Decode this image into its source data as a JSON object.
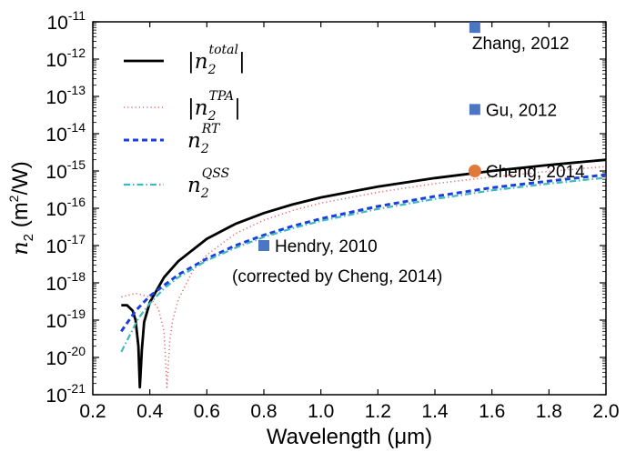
{
  "chart_data": {
    "type": "line",
    "xlabel": "Wavelength (μm)",
    "ylabel_symbol": "n",
    "ylabel_sub": "2",
    "ylabel_units": " (m",
    "ylabel_units_sup": "2",
    "ylabel_units_end": "/W)",
    "xlim": [
      0.2,
      2.0
    ],
    "ylim_log10": [
      -21,
      -11
    ],
    "y_scale": "log",
    "grid": false,
    "legend_position": "top-left",
    "x_ticks": [
      "0.2",
      "0.4",
      "0.6",
      "0.8",
      "1.0",
      "1.2",
      "1.4",
      "1.6",
      "1.8",
      "2.0"
    ],
    "y_ticks": [
      {
        "base": "10",
        "exp": "-21"
      },
      {
        "base": "10",
        "exp": "-20"
      },
      {
        "base": "10",
        "exp": "-19"
      },
      {
        "base": "10",
        "exp": "-18"
      },
      {
        "base": "10",
        "exp": "-17"
      },
      {
        "base": "10",
        "exp": "-16"
      },
      {
        "base": "10",
        "exp": "-15"
      },
      {
        "base": "10",
        "exp": "-14"
      },
      {
        "base": "10",
        "exp": "-13"
      },
      {
        "base": "10",
        "exp": "-12"
      },
      {
        "base": "10",
        "exp": "-11"
      }
    ],
    "series": [
      {
        "name": "|n2^total|",
        "legend": {
          "pre": "|",
          "sym": "n",
          "sub": "2",
          "sup": "total",
          "post": "|"
        },
        "color": "#000000",
        "dash": "",
        "width": 2.8,
        "x": [
          0.3,
          0.32,
          0.34,
          0.35,
          0.36,
          0.365,
          0.372,
          0.38,
          0.4,
          0.45,
          0.5,
          0.6,
          0.7,
          0.8,
          0.9,
          1.0,
          1.2,
          1.4,
          1.6,
          1.8,
          2.0
        ],
        "log10_y": [
          -18.6,
          -18.6,
          -18.75,
          -19.0,
          -19.7,
          -20.8,
          -19.8,
          -19.05,
          -18.52,
          -17.85,
          -17.42,
          -16.82,
          -16.42,
          -16.13,
          -15.9,
          -15.71,
          -15.42,
          -15.19,
          -15.0,
          -14.84,
          -14.7
        ]
      },
      {
        "name": "|n2^TPA|",
        "legend": {
          "pre": "|",
          "sym": "n",
          "sub": "2",
          "sup": "TPA",
          "post": "|"
        },
        "color": "#e07070",
        "dash": "1.2,3",
        "width": 1.6,
        "x": [
          0.3,
          0.35,
          0.4,
          0.43,
          0.45,
          0.46,
          0.47,
          0.48,
          0.5,
          0.55,
          0.6,
          0.7,
          0.8,
          0.9,
          1.0,
          1.2,
          1.4,
          1.6,
          1.8,
          2.0
        ],
        "log10_y": [
          -18.38,
          -18.28,
          -18.38,
          -18.7,
          -19.3,
          -20.8,
          -19.55,
          -19.0,
          -18.45,
          -17.68,
          -17.25,
          -16.68,
          -16.32,
          -16.06,
          -15.86,
          -15.57,
          -15.34,
          -15.16,
          -15.01,
          -14.88
        ]
      },
      {
        "name": "n2^RT",
        "legend": {
          "pre": "",
          "sym": "n",
          "sub": "2",
          "sup": "RT",
          "post": ""
        },
        "color": "#1a3fdc",
        "dash": "6,4",
        "width": 3.0,
        "x": [
          0.3,
          0.35,
          0.4,
          0.5,
          0.6,
          0.7,
          0.8,
          0.9,
          1.0,
          1.2,
          1.4,
          1.6,
          1.8,
          2.0
        ],
        "log10_y": [
          -19.3,
          -18.75,
          -18.35,
          -17.78,
          -17.35,
          -17.0,
          -16.72,
          -16.48,
          -16.28,
          -15.95,
          -15.68,
          -15.45,
          -15.27,
          -15.1
        ]
      },
      {
        "name": "n2^QSS",
        "legend": {
          "pre": "",
          "sym": "n",
          "sub": "2",
          "sup": "QSS",
          "post": ""
        },
        "color": "#40b8c0",
        "dash": "7,3,1.5,3",
        "width": 2.2,
        "x": [
          0.3,
          0.33,
          0.36,
          0.4,
          0.45,
          0.5,
          0.6,
          0.7,
          0.8,
          0.9,
          1.0,
          1.2,
          1.4,
          1.6,
          1.8,
          2.0
        ],
        "log10_y": [
          -19.85,
          -19.4,
          -18.95,
          -18.55,
          -18.15,
          -17.85,
          -17.4,
          -17.06,
          -16.77,
          -16.54,
          -16.34,
          -16.02,
          -15.75,
          -15.52,
          -15.34,
          -15.18
        ]
      }
    ],
    "points": [
      {
        "label": "Zhang, 2012",
        "label2": "",
        "x": 1.54,
        "log10_y": -11.15,
        "marker": "square",
        "color": "#4a76c4",
        "label_side": "right-below"
      },
      {
        "label": "Gu, 2012",
        "label2": "",
        "x": 1.54,
        "log10_y": -13.35,
        "marker": "square",
        "color": "#4a76c4",
        "label_side": "right"
      },
      {
        "label": "Cheng, 2014",
        "label2": "",
        "x": 1.54,
        "log10_y": -15.0,
        "marker": "circle",
        "color": "#e07a3a",
        "label_side": "right"
      },
      {
        "label": "Hendry, 2010",
        "label2": "(corrected by Cheng, 2014)",
        "x": 0.8,
        "log10_y": -17.0,
        "marker": "square",
        "color": "#4a76c4",
        "label_side": "right"
      }
    ]
  }
}
